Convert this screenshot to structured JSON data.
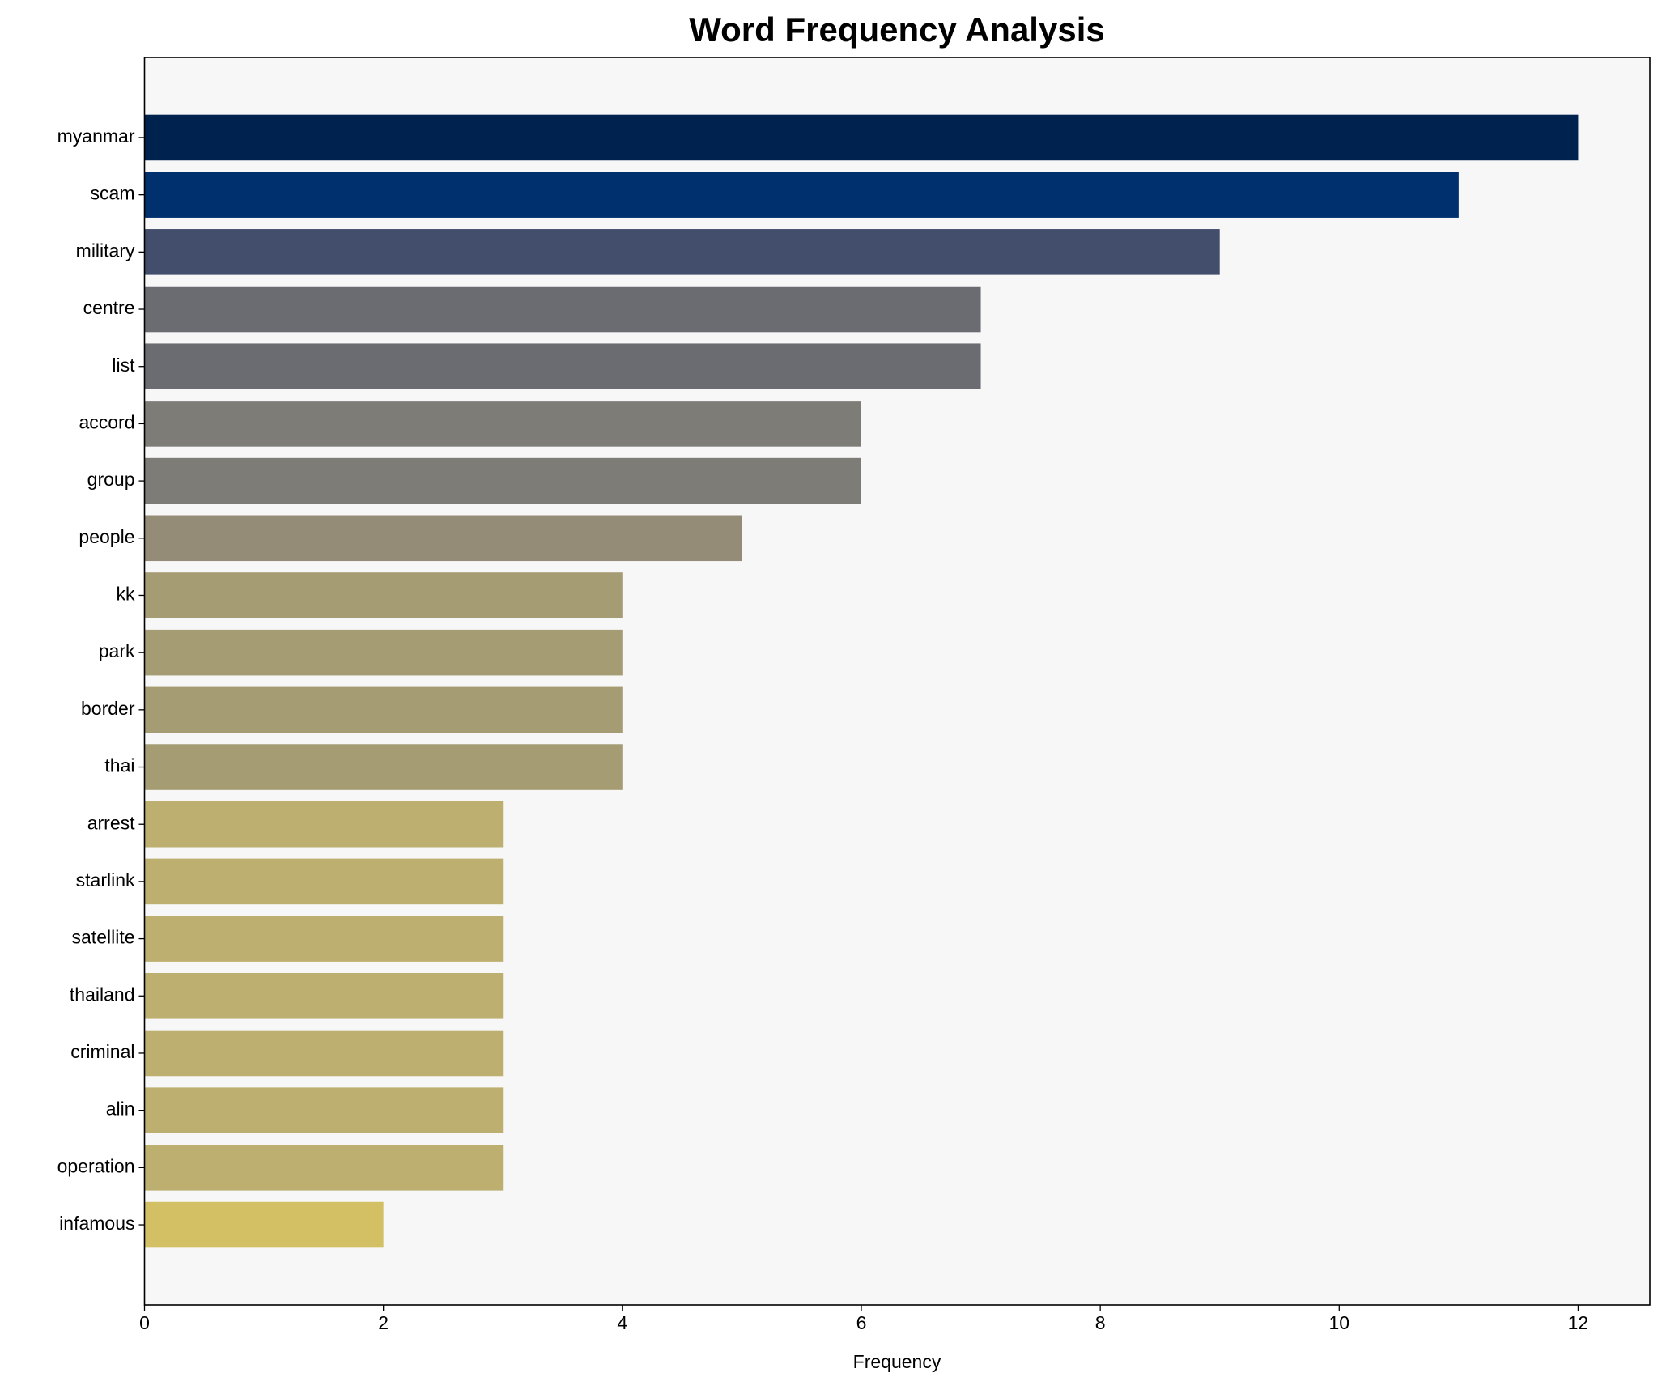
{
  "chart_data": {
    "type": "barh",
    "title": "Word Frequency Analysis",
    "x_label": "Frequency",
    "categories": [
      "myanmar",
      "scam",
      "military",
      "centre",
      "list",
      "accord",
      "group",
      "people",
      "kk",
      "park",
      "border",
      "thai",
      "arrest",
      "starlink",
      "satellite",
      "thailand",
      "criminal",
      "alin",
      "operation",
      "infamous"
    ],
    "values": [
      12,
      11,
      9,
      7,
      7,
      6,
      6,
      5,
      4,
      4,
      4,
      4,
      3,
      3,
      3,
      3,
      3,
      3,
      3,
      2
    ],
    "colors": [
      "#00224e",
      "#01306f",
      "#434e6c",
      "#6b6c71",
      "#6b6c71",
      "#7e7c77",
      "#7e7c77",
      "#948c77",
      "#a59c74",
      "#a59c74",
      "#a59c74",
      "#a59c74",
      "#bcaf6f",
      "#bcaf6f",
      "#bcaf6f",
      "#bcaf6f",
      "#bcaf6f",
      "#bcaf6f",
      "#bcaf6f",
      "#d3c064"
    ],
    "xlim": [
      0,
      12.6
    ],
    "xticks": [
      0,
      2,
      4,
      6,
      8,
      10,
      12
    ]
  }
}
